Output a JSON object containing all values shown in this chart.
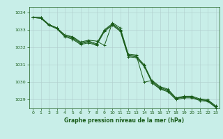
{
  "title": "Graphe pression niveau de la mer (hPa)",
  "background_color": "#c8eee8",
  "grid_color": "#b0cccc",
  "line_color": "#1a5c1a",
  "xlim": [
    -0.5,
    23.5
  ],
  "ylim": [
    1028.5,
    1034.3
  ],
  "yticks": [
    1029,
    1030,
    1031,
    1032,
    1033,
    1034
  ],
  "xticks": [
    0,
    1,
    2,
    3,
    4,
    5,
    6,
    7,
    8,
    9,
    10,
    11,
    12,
    13,
    14,
    15,
    16,
    17,
    18,
    19,
    20,
    21,
    22,
    23
  ],
  "xlabel_fontsize": 5.5,
  "tick_fontsize": 4.5,
  "series": [
    [
      1033.7,
      1033.7,
      1033.3,
      1033.1,
      1032.7,
      1032.6,
      1032.3,
      1032.4,
      1032.35,
      1032.1,
      1033.4,
      1033.1,
      1031.6,
      1031.55,
      1030.0,
      1030.1,
      1029.75,
      1029.6,
      1029.1,
      1029.15,
      1029.15,
      1029.0,
      1028.95,
      1028.6
    ],
    [
      1033.7,
      1033.7,
      1033.3,
      1033.1,
      1032.7,
      1032.55,
      1032.25,
      1032.35,
      1032.2,
      1033.0,
      1033.35,
      1033.0,
      1031.55,
      1031.5,
      1031.0,
      1030.05,
      1029.7,
      1029.55,
      1029.1,
      1029.2,
      1029.2,
      1029.05,
      1029.0,
      1028.65
    ],
    [
      1033.7,
      1033.65,
      1033.3,
      1033.1,
      1032.65,
      1032.5,
      1032.2,
      1032.3,
      1032.15,
      1032.95,
      1033.3,
      1032.95,
      1031.5,
      1031.45,
      1030.95,
      1030.0,
      1029.65,
      1029.5,
      1029.05,
      1029.15,
      1029.15,
      1029.0,
      1028.95,
      1028.6
    ],
    [
      1033.7,
      1033.65,
      1033.25,
      1033.05,
      1032.6,
      1032.45,
      1032.15,
      1032.25,
      1032.1,
      1032.9,
      1033.25,
      1032.9,
      1031.45,
      1031.4,
      1030.9,
      1029.95,
      1029.6,
      1029.45,
      1029.0,
      1029.1,
      1029.1,
      1028.95,
      1028.9,
      1028.55
    ]
  ]
}
